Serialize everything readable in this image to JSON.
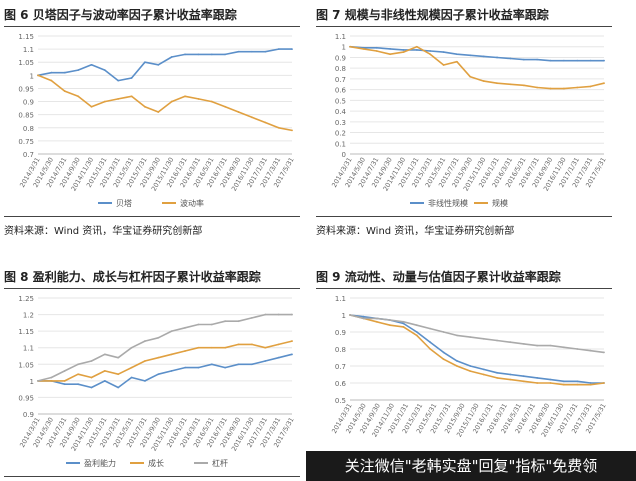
{
  "figures": [
    {
      "title": "图 6   贝塔因子与波动率因子累计收益率跟踪",
      "source": "资料来源：Wind 资讯，华宝证券研究创新部"
    },
    {
      "title": "图 7   规模与非线性规模因子累计收益率跟踪",
      "source": "资料来源：Wind 资讯，华宝证券研究创新部"
    },
    {
      "title": "图 8   盈利能力、成长与杠杆因子累计收益率跟踪",
      "source": ""
    },
    {
      "title": "图 9   流动性、动量与估值因子累计收益率跟踪",
      "source": ""
    }
  ],
  "watermark": "关注微信\"老韩实盘\"回复\"指标\"免费领",
  "chart_data": [
    {
      "type": "line",
      "x": [
        "2014/3/31",
        "2014/5/30",
        "2014/7/31",
        "2014/9/30",
        "2014/11/30",
        "2015/1/31",
        "2015/3/31",
        "2015/5/31",
        "2015/7/31",
        "2015/9/30",
        "2015/11/30",
        "2016/1/31",
        "2016/3/31",
        "2016/5/31",
        "2016/7/31",
        "2016/9/30",
        "2016/11/30",
        "2017/1/31",
        "2017/3/31",
        "2017/5/31"
      ],
      "tick_labels": [
        "2014/3/31",
        "2014/5/30",
        "2014/7/31",
        "2014/9/30",
        "2014/11/30",
        "2015/1/31",
        "2015/3/31",
        "2015/5/31",
        "2015/7/31",
        "2015/9/30",
        "2015/11/30",
        "2016/1/31",
        "2016/3/31",
        "2016/5/31",
        "2016/7/31",
        "2016/9/30",
        "2016/11/30",
        "2017/1/31",
        "2017/3/31",
        "2017/5/31"
      ],
      "yticks": [
        0.7,
        0.75,
        0.8,
        0.85,
        0.9,
        0.95,
        1,
        1.05,
        1.1,
        1.15
      ],
      "ylim": [
        0.7,
        1.15
      ],
      "series": [
        {
          "name": "贝塔",
          "color": "#5b8fc9",
          "values": [
            1.0,
            1.01,
            1.01,
            1.02,
            1.04,
            1.02,
            0.98,
            0.99,
            1.05,
            1.04,
            1.07,
            1.08,
            1.08,
            1.08,
            1.08,
            1.09,
            1.09,
            1.09,
            1.1,
            1.1
          ]
        },
        {
          "name": "波动率",
          "color": "#e0a040",
          "values": [
            1.0,
            0.98,
            0.94,
            0.92,
            0.88,
            0.9,
            0.91,
            0.92,
            0.88,
            0.86,
            0.9,
            0.92,
            0.91,
            0.9,
            0.88,
            0.86,
            0.84,
            0.82,
            0.8,
            0.79
          ]
        }
      ]
    },
    {
      "type": "line",
      "x": [
        "2014/3/31",
        "2014/5/30",
        "2014/7/31",
        "2014/9/30",
        "2014/11/30",
        "2015/1/31",
        "2015/3/31",
        "2015/5/31",
        "2015/7/31",
        "2015/9/30",
        "2015/11/30",
        "2016/1/31",
        "2016/3/31",
        "2016/5/31",
        "2016/7/31",
        "2016/9/30",
        "2016/11/30",
        "2017/1/31",
        "2017/3/31",
        "2017/5/31"
      ],
      "tick_labels": [
        "2014/3/31",
        "2014/5/30",
        "2014/7/31",
        "2014/9/30",
        "2014/11/30",
        "2015/1/31",
        "2015/3/31",
        "2015/5/31",
        "2015/7/31",
        "2015/9/30",
        "2015/11/30",
        "2016/1/31",
        "2016/3/31",
        "2016/5/31",
        "2016/7/31",
        "2016/9/30",
        "2016/11/30",
        "2017/1/31",
        "2017/3/31",
        "2017/5/31"
      ],
      "yticks": [
        0,
        0.1,
        0.2,
        0.3,
        0.4,
        0.5,
        0.6,
        0.7,
        0.8,
        0.9,
        1,
        1.1
      ],
      "ylim": [
        0,
        1.1
      ],
      "series": [
        {
          "name": "非线性规模",
          "color": "#5b8fc9",
          "values": [
            1.0,
            0.99,
            0.99,
            0.98,
            0.97,
            0.97,
            0.96,
            0.95,
            0.93,
            0.92,
            0.91,
            0.9,
            0.89,
            0.88,
            0.88,
            0.87,
            0.87,
            0.87,
            0.87,
            0.87
          ]
        },
        {
          "name": "规模",
          "color": "#e0a040",
          "values": [
            1.0,
            0.98,
            0.96,
            0.93,
            0.95,
            1.0,
            0.93,
            0.83,
            0.86,
            0.72,
            0.68,
            0.66,
            0.65,
            0.64,
            0.62,
            0.61,
            0.61,
            0.62,
            0.63,
            0.66
          ]
        }
      ]
    },
    {
      "type": "line",
      "x": [
        "2014/3/31",
        "2014/5/30",
        "2014/7/31",
        "2014/9/30",
        "2014/11/30",
        "2015/1/31",
        "2015/3/31",
        "2015/5/31",
        "2015/7/31",
        "2015/9/30",
        "2015/11/30",
        "2016/1/31",
        "2016/3/31",
        "2016/5/31",
        "2016/7/31",
        "2016/9/30",
        "2016/11/30",
        "2017/1/31",
        "2017/3/31",
        "2017/5/31"
      ],
      "tick_labels": [
        "2014/3/31",
        "2014/5/30",
        "2014/7/31",
        "2014/9/30",
        "2014/11/30",
        "2015/1/31",
        "2015/3/31",
        "2015/5/31",
        "2015/7/31",
        "2015/9/30",
        "2015/11/30",
        "2016/1/31",
        "2016/3/31",
        "2016/5/31",
        "2016/7/31",
        "2016/9/30",
        "2016/11/30",
        "2017/1/31",
        "2017/3/31",
        "2017/5/31"
      ],
      "yticks": [
        0.9,
        0.95,
        1,
        1.05,
        1.1,
        1.15,
        1.2,
        1.25
      ],
      "ylim": [
        0.9,
        1.25
      ],
      "series": [
        {
          "name": "盈利能力",
          "color": "#5b8fc9",
          "values": [
            1.0,
            1.0,
            0.99,
            0.99,
            0.98,
            1.0,
            0.98,
            1.01,
            1.0,
            1.02,
            1.03,
            1.04,
            1.04,
            1.05,
            1.04,
            1.05,
            1.05,
            1.06,
            1.07,
            1.08
          ]
        },
        {
          "name": "成长",
          "color": "#e0a040",
          "values": [
            1.0,
            1.0,
            1.0,
            1.02,
            1.01,
            1.03,
            1.02,
            1.04,
            1.06,
            1.07,
            1.08,
            1.09,
            1.1,
            1.1,
            1.1,
            1.11,
            1.11,
            1.1,
            1.11,
            1.12
          ]
        },
        {
          "name": "杠杆",
          "color": "#aaaaaa",
          "values": [
            1.0,
            1.01,
            1.03,
            1.05,
            1.06,
            1.08,
            1.07,
            1.1,
            1.12,
            1.13,
            1.15,
            1.16,
            1.17,
            1.17,
            1.18,
            1.18,
            1.19,
            1.2,
            1.2,
            1.2
          ]
        }
      ]
    },
    {
      "type": "line",
      "x": [
        "2014/3/31",
        "2014/5/30",
        "2014/7/31",
        "2014/9/30",
        "2014/11/30",
        "2015/1/31",
        "2015/3/31",
        "2015/5/31",
        "2015/7/31",
        "2015/9/30",
        "2015/11/30",
        "2016/1/31",
        "2016/3/31",
        "2016/5/31",
        "2016/7/31",
        "2016/9/30",
        "2016/11/30",
        "2017/1/31",
        "2017/3/31",
        "2017/5/31"
      ],
      "tick_labels": [
        "2014/3/31",
        "2014/5/30",
        "2014/9/30",
        "2014/11/30",
        "2015/1/31",
        "2015/3/31",
        "2015/5/31",
        "2015/7/31",
        "2015/9/30",
        "2015/11/30",
        "2016/1/31",
        "2016/3/31",
        "2016/5/31",
        "2016/7/31",
        "2016/9/30",
        "2016/11/30",
        "2017/1/31",
        "2017/3/31",
        "2017/5/31"
      ],
      "yticks": [
        0.5,
        0.6,
        0.7,
        0.8,
        0.9,
        1,
        1.1
      ],
      "ylim": [
        0.5,
        1.1
      ],
      "series": [
        {
          "name": "流动性",
          "color": "#5b8fc9",
          "values": [
            1.0,
            0.99,
            0.98,
            0.97,
            0.95,
            0.9,
            0.84,
            0.78,
            0.73,
            0.7,
            0.68,
            0.66,
            0.65,
            0.64,
            0.63,
            0.62,
            0.61,
            0.61,
            0.6,
            0.6
          ]
        },
        {
          "name": "动量",
          "color": "#e0a040",
          "values": [
            1.0,
            0.98,
            0.96,
            0.94,
            0.93,
            0.88,
            0.8,
            0.74,
            0.7,
            0.67,
            0.65,
            0.63,
            0.62,
            0.61,
            0.6,
            0.6,
            0.59,
            0.59,
            0.59,
            0.6
          ]
        },
        {
          "name": "估值",
          "color": "#aaaaaa",
          "values": [
            1.0,
            0.98,
            0.98,
            0.97,
            0.96,
            0.94,
            0.92,
            0.9,
            0.88,
            0.87,
            0.86,
            0.85,
            0.84,
            0.83,
            0.82,
            0.82,
            0.81,
            0.8,
            0.79,
            0.78
          ]
        }
      ]
    }
  ]
}
